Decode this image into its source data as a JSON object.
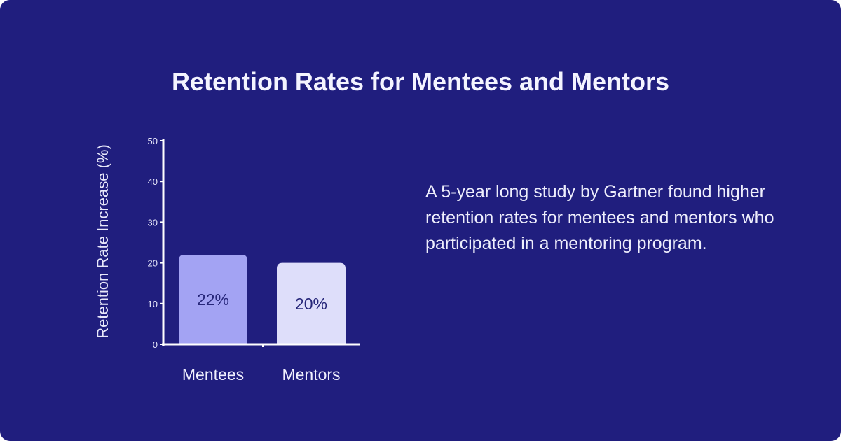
{
  "title": "Retention Rates for Mentees and Mentors",
  "description": "A 5-year long study by Gartner found higher retention rates for mentees and mentors who participated in a mentoring program.",
  "colors": {
    "background": "#201e7e",
    "bar_mentees": "#a3a3f3",
    "bar_mentors": "#dedefa",
    "value_label": "#27277a"
  },
  "chart_data": {
    "type": "bar",
    "categories": [
      "Mentees",
      "Mentors"
    ],
    "values": [
      22,
      20
    ],
    "data_labels": [
      "22%",
      "20%"
    ],
    "title": "",
    "xlabel": "",
    "ylabel": "Retention Rate Increase (%)",
    "ylim": [
      0,
      50
    ],
    "yticks": [
      0,
      10,
      20,
      30,
      40,
      50
    ],
    "grid": false
  }
}
